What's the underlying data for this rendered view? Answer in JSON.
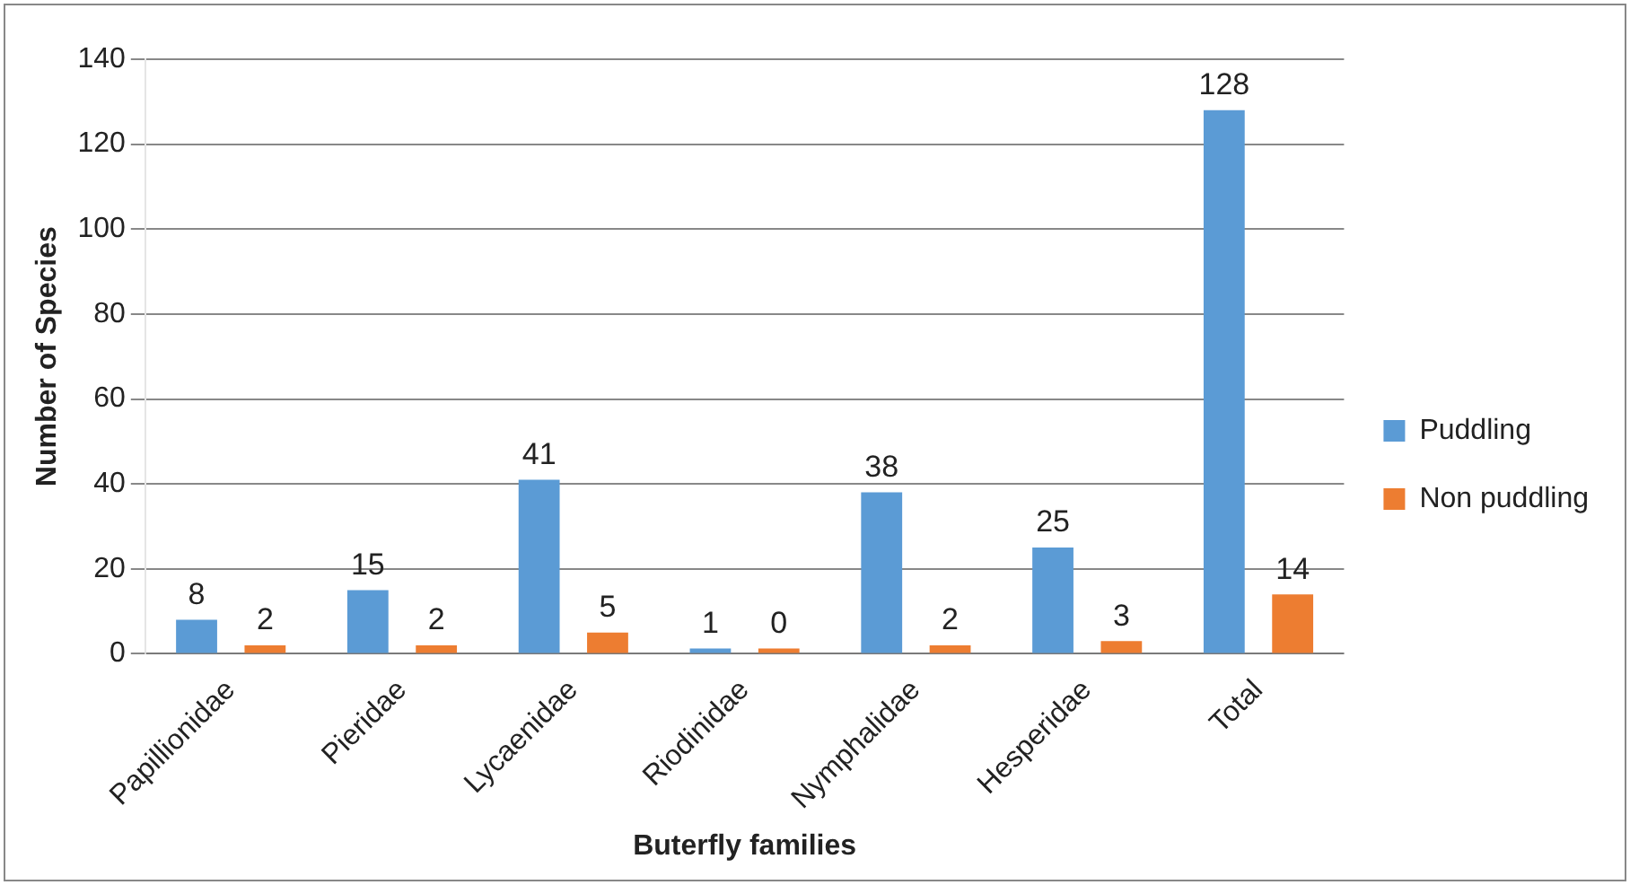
{
  "chart_data": {
    "type": "bar",
    "xlabel": "Buterfly families",
    "ylabel": "Number of Species",
    "categories": [
      "Papillionidae",
      "Pieridae",
      "Lycaenidae",
      "Riodinidae",
      "Nymphalidae",
      "Hesperidae",
      "Total"
    ],
    "series": [
      {
        "name": "Puddling",
        "color": "#5b9bd5",
        "values": [
          8,
          15,
          41,
          1,
          38,
          25,
          128
        ]
      },
      {
        "name": "Non puddling",
        "color": "#ed7d31",
        "values": [
          2,
          2,
          5,
          0,
          2,
          3,
          14
        ]
      }
    ],
    "ylim": [
      0,
      140
    ],
    "yticks": [
      0,
      20,
      40,
      60,
      80,
      100,
      120,
      140
    ],
    "grid": "y",
    "legend": "right",
    "data_labels": true
  }
}
